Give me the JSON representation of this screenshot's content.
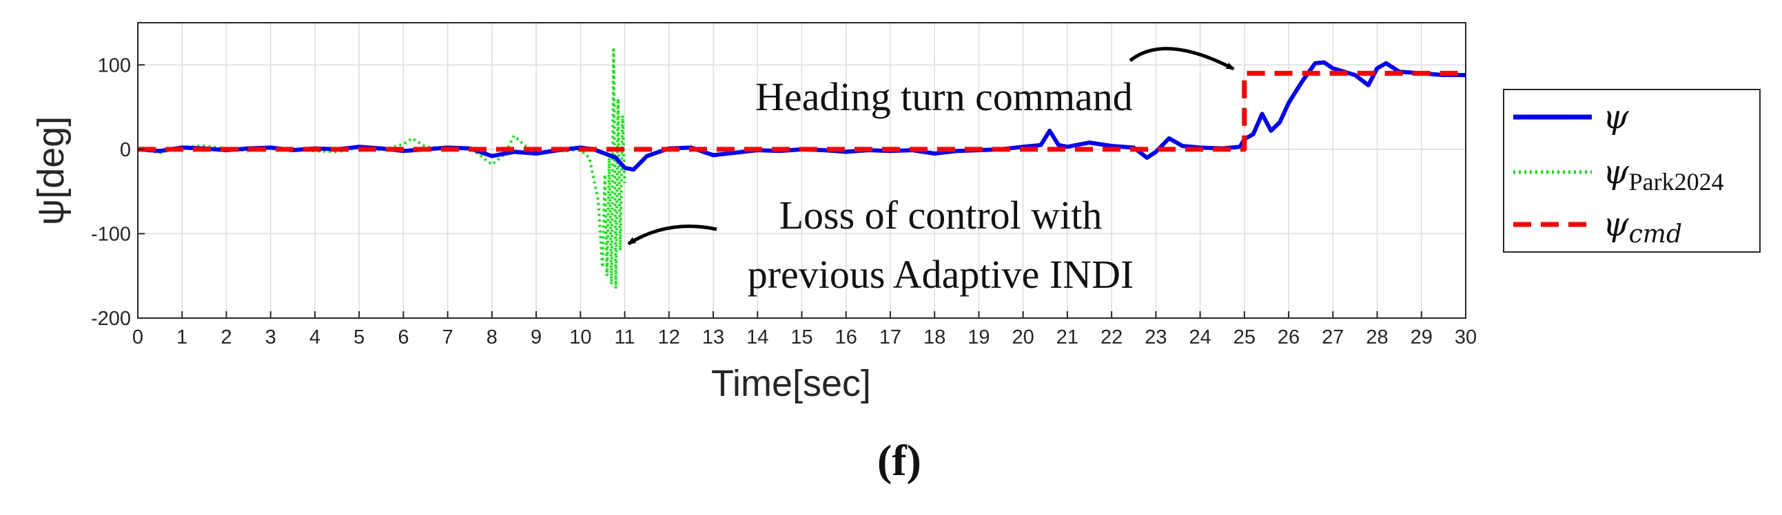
{
  "chart_data": {
    "type": "line",
    "xlabel": "Time[sec]",
    "ylabel": "ψ[deg]",
    "xlim": [
      0,
      30
    ],
    "ylim": [
      -200,
      150
    ],
    "xticks": [
      0,
      1,
      2,
      3,
      4,
      5,
      6,
      7,
      8,
      9,
      10,
      11,
      12,
      13,
      14,
      15,
      16,
      17,
      18,
      19,
      20,
      21,
      22,
      23,
      24,
      25,
      26,
      27,
      28,
      29,
      30
    ],
    "yticks": [
      -200,
      -100,
      0,
      100
    ],
    "grid": true,
    "legend_position": "outside-right",
    "legend": [
      {
        "symbol": "ψ",
        "subscript": "",
        "style": "solid",
        "color": "#0000ff"
      },
      {
        "symbol": "ψ",
        "subscript": "Park2024",
        "style": "dotted",
        "color": "#00ee00"
      },
      {
        "symbol": "ψ",
        "subscript": "cmd",
        "style": "dashed",
        "color": "#ff0000"
      }
    ],
    "series": [
      {
        "key": "psi",
        "color": "#0000ff",
        "style": "solid",
        "points": [
          [
            0,
            0
          ],
          [
            0.5,
            -2
          ],
          [
            1,
            2
          ],
          [
            1.5,
            1
          ],
          [
            2,
            -1
          ],
          [
            2.5,
            1
          ],
          [
            3,
            2
          ],
          [
            3.5,
            -1
          ],
          [
            4,
            1
          ],
          [
            4.5,
            0
          ],
          [
            5,
            3
          ],
          [
            5.5,
            1
          ],
          [
            6,
            -2
          ],
          [
            6.5,
            0
          ],
          [
            7,
            2
          ],
          [
            7.5,
            1
          ],
          [
            8,
            -8
          ],
          [
            8.5,
            -3
          ],
          [
            9,
            -5
          ],
          [
            9.5,
            -1
          ],
          [
            10,
            2
          ],
          [
            10.3,
            0
          ],
          [
            10.6,
            -6
          ],
          [
            10.8,
            -10
          ],
          [
            11,
            -22
          ],
          [
            11.2,
            -24
          ],
          [
            11.5,
            -8
          ],
          [
            12,
            1
          ],
          [
            12.5,
            2
          ],
          [
            13,
            -7
          ],
          [
            13.5,
            -4
          ],
          [
            14,
            -1
          ],
          [
            14.5,
            -2
          ],
          [
            15,
            0
          ],
          [
            15.5,
            -1
          ],
          [
            16,
            -3
          ],
          [
            16.5,
            -1
          ],
          [
            17,
            -2
          ],
          [
            17.5,
            -1
          ],
          [
            18,
            -5
          ],
          [
            18.5,
            -2
          ],
          [
            19,
            -1
          ],
          [
            19.5,
            0
          ],
          [
            20,
            3
          ],
          [
            20.4,
            5
          ],
          [
            20.6,
            22
          ],
          [
            20.8,
            5
          ],
          [
            21,
            3
          ],
          [
            21.5,
            8
          ],
          [
            22,
            4
          ],
          [
            22.5,
            2
          ],
          [
            22.8,
            -10
          ],
          [
            23,
            -3
          ],
          [
            23.3,
            13
          ],
          [
            23.6,
            4
          ],
          [
            24,
            2
          ],
          [
            24.5,
            1
          ],
          [
            24.9,
            3
          ],
          [
            25,
            12
          ],
          [
            25.2,
            18
          ],
          [
            25.4,
            42
          ],
          [
            25.6,
            22
          ],
          [
            25.8,
            32
          ],
          [
            26,
            55
          ],
          [
            26.3,
            80
          ],
          [
            26.6,
            102
          ],
          [
            26.8,
            103
          ],
          [
            27,
            96
          ],
          [
            27.5,
            88
          ],
          [
            27.8,
            76
          ],
          [
            28,
            96
          ],
          [
            28.2,
            102
          ],
          [
            28.5,
            92
          ],
          [
            29,
            90
          ],
          [
            29.5,
            88
          ],
          [
            30,
            88
          ]
        ]
      },
      {
        "key": "psi_park2024",
        "color": "#00ee00",
        "style": "dotted",
        "points": [
          [
            0,
            0
          ],
          [
            0.5,
            -4
          ],
          [
            1,
            3
          ],
          [
            1.5,
            4
          ],
          [
            2,
            1
          ],
          [
            2.5,
            -2
          ],
          [
            3,
            3
          ],
          [
            3.5,
            0
          ],
          [
            4,
            -2
          ],
          [
            4.5,
            -3
          ],
          [
            5,
            2
          ],
          [
            5.5,
            -1
          ],
          [
            6,
            6
          ],
          [
            6.2,
            13
          ],
          [
            6.5,
            3
          ],
          [
            7,
            1
          ],
          [
            7.5,
            2
          ],
          [
            8,
            -18
          ],
          [
            8.3,
            -5
          ],
          [
            8.5,
            16
          ],
          [
            8.8,
            2
          ],
          [
            9,
            -4
          ],
          [
            9.5,
            -2
          ],
          [
            10,
            -1
          ],
          [
            10.2,
            -10
          ],
          [
            10.4,
            -60
          ],
          [
            10.5,
            -140
          ],
          [
            10.55,
            -30
          ],
          [
            10.6,
            -150
          ],
          [
            10.65,
            -10
          ],
          [
            10.7,
            -160
          ],
          [
            10.75,
            118
          ],
          [
            10.8,
            -165
          ],
          [
            10.85,
            60
          ],
          [
            10.9,
            -120
          ],
          [
            10.95,
            40
          ],
          [
            11,
            -40
          ]
        ]
      },
      {
        "key": "psi_cmd",
        "color": "#ff0000",
        "style": "dashed",
        "points": [
          [
            0,
            0
          ],
          [
            25,
            0
          ],
          [
            25,
            90
          ],
          [
            30,
            90
          ]
        ]
      }
    ],
    "annotations": [
      {
        "text": "Heading turn command"
      },
      {
        "text": "Loss of control with"
      },
      {
        "text": "previous Adaptive INDI"
      }
    ]
  },
  "panel_label": "(f)"
}
